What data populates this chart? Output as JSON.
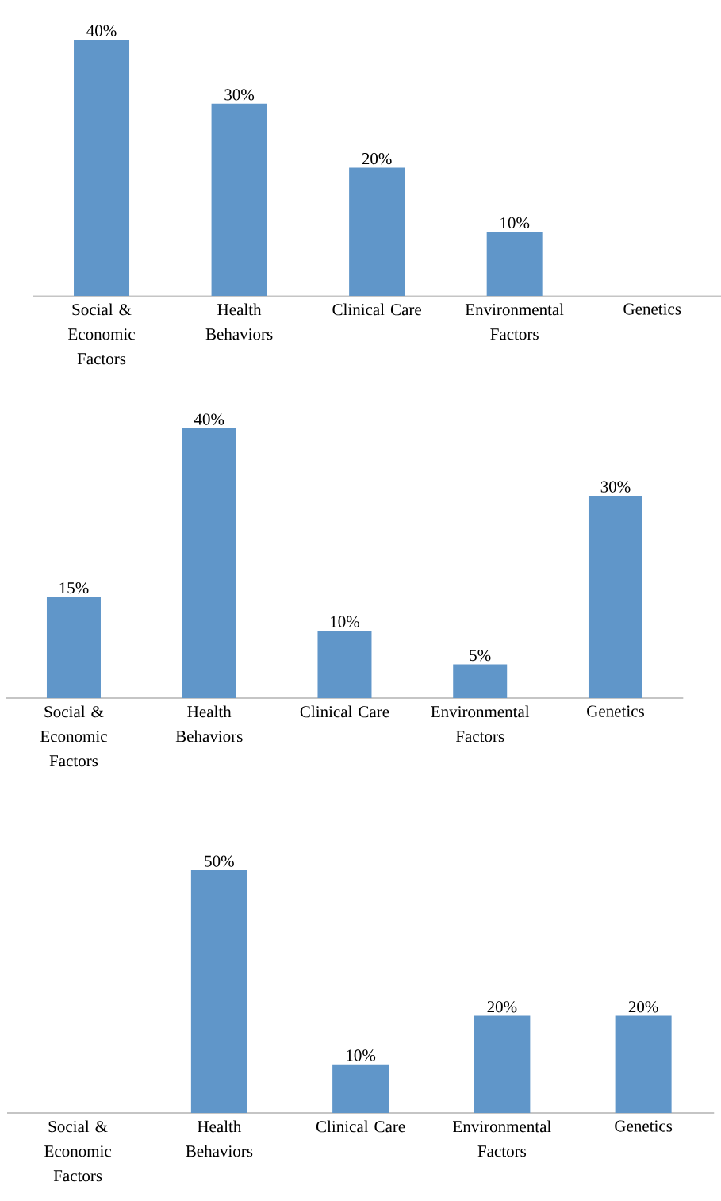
{
  "chart_data": [
    {
      "type": "bar",
      "categories": [
        "Social & Economic Factors",
        "Health Behaviors",
        "Clinical Care",
        "Environmental Factors",
        "Genetics"
      ],
      "values": [
        40,
        30,
        20,
        10,
        null
      ],
      "value_labels": [
        "40%",
        "30%",
        "20%",
        "10%",
        null
      ],
      "color": "#6096c9"
    },
    {
      "type": "bar",
      "categories": [
        "Social & Economic Factors",
        "Health Behaviors",
        "Clinical Care",
        "Environmental Factors",
        "Genetics"
      ],
      "values": [
        15,
        40,
        10,
        5,
        30
      ],
      "value_labels": [
        "15%",
        "40%",
        "10%",
        "5%",
        "30%"
      ],
      "color": "#6096c9"
    },
    {
      "type": "bar",
      "categories": [
        "Social & Economic Factors",
        "Health Behaviors",
        "Clinical Care",
        "Environmental Factors",
        "Genetics"
      ],
      "values": [
        null,
        50,
        10,
        20,
        20
      ],
      "value_labels": [
        null,
        "50%",
        "10%",
        "20%",
        "20%"
      ],
      "color": "#6096c9"
    }
  ]
}
